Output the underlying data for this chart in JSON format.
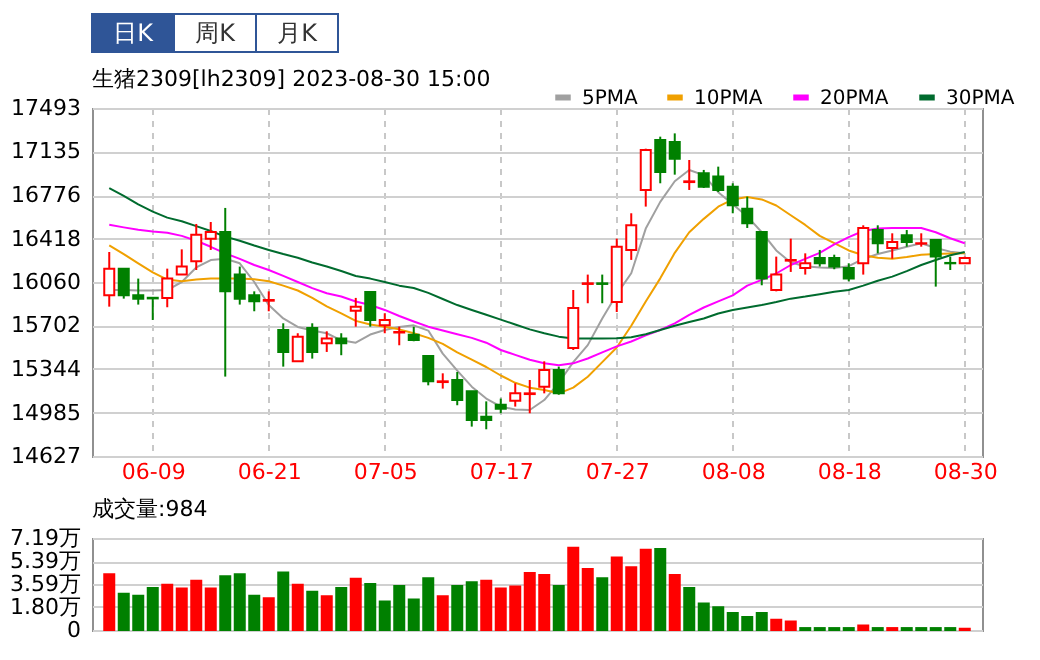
{
  "chart_data": [
    {
      "type": "candlestick",
      "title": "生猪2309[lh2309] 2023-08-30 15:00",
      "annotations": [
        "日K",
        "周K",
        "月K"
      ],
      "categories": [
        null,
        null,
        null,
        "06-09",
        null,
        null,
        null,
        null,
        null,
        null,
        null,
        "06-21",
        null,
        null,
        null,
        null,
        null,
        null,
        null,
        "07-05",
        null,
        null,
        null,
        null,
        null,
        null,
        null,
        "07-17",
        null,
        null,
        null,
        null,
        null,
        null,
        null,
        "07-27",
        null,
        null,
        null,
        null,
        null,
        null,
        null,
        "08-08",
        null,
        null,
        null,
        null,
        null,
        null,
        null,
        "08-18",
        null,
        null,
        null,
        null,
        null,
        null,
        null,
        "08-30"
      ],
      "ohlc": [
        [
          15950,
          16307,
          15857,
          16170
        ],
        [
          16170,
          16170,
          15923,
          15950
        ],
        [
          15950,
          16088,
          15874,
          15923
        ],
        [
          15930,
          15935,
          15747,
          15925
        ],
        [
          15928,
          16170,
          15852,
          16088
        ],
        [
          16121,
          16329,
          16121,
          16187
        ],
        [
          16230,
          16538,
          16159,
          16450
        ],
        [
          16417,
          16554,
          16324,
          16472
        ],
        [
          16472,
          16670,
          15281,
          15983
        ],
        [
          16121,
          16187,
          15874,
          15923
        ],
        [
          15950,
          15983,
          15819,
          15901
        ],
        [
          15906,
          15983,
          15819,
          15912
        ],
        [
          15665,
          15720,
          15363,
          15484
        ],
        [
          15407,
          15638,
          15407,
          15610
        ],
        [
          15681,
          15720,
          15429,
          15484
        ],
        [
          15555,
          15654,
          15484,
          15594
        ],
        [
          15594,
          15638,
          15457,
          15555
        ],
        [
          15824,
          15929,
          15692,
          15857
        ],
        [
          15978,
          15978,
          15692,
          15747
        ],
        [
          15703,
          15802,
          15638,
          15747
        ],
        [
          15644,
          15692,
          15539,
          15648
        ],
        [
          15626,
          15692,
          15572,
          15583
        ],
        [
          15451,
          15451,
          15209,
          15242
        ],
        [
          15236,
          15308,
          15182,
          15242
        ],
        [
          15253,
          15319,
          15045,
          15088
        ],
        [
          15160,
          15160,
          14869,
          14924
        ],
        [
          14951,
          15077,
          14847,
          14924
        ],
        [
          15050,
          15100,
          14979,
          15017
        ],
        [
          15083,
          15226,
          15034,
          15143
        ],
        [
          15137,
          15253,
          14979,
          15143
        ],
        [
          15198,
          15407,
          15143,
          15336
        ],
        [
          15336,
          15363,
          15132,
          15143
        ],
        [
          15517,
          15994,
          15500,
          15846
        ],
        [
          16044,
          16121,
          15885,
          16049
        ],
        [
          16049,
          16121,
          15885,
          16044
        ],
        [
          15896,
          16417,
          15813,
          16351
        ],
        [
          16324,
          16626,
          16242,
          16527
        ],
        [
          16818,
          17158,
          16681,
          17147
        ],
        [
          17230,
          17257,
          16873,
          16966
        ],
        [
          17213,
          17284,
          16944,
          17076
        ],
        [
          16883,
          17065,
          16818,
          16889
        ],
        [
          16955,
          16983,
          16834,
          16845
        ],
        [
          16928,
          17010,
          16801,
          16818
        ],
        [
          16845,
          16873,
          16626,
          16692
        ],
        [
          16664,
          16763,
          16505,
          16543
        ],
        [
          16472,
          16472,
          16033,
          16088
        ],
        [
          15994,
          16269,
          15983,
          16121
        ],
        [
          16236,
          16417,
          16143,
          16241
        ],
        [
          16176,
          16296,
          16121,
          16214
        ],
        [
          16258,
          16324,
          16187,
          16214
        ],
        [
          16258,
          16285,
          16165,
          16187
        ],
        [
          16176,
          16214,
          16066,
          16088
        ],
        [
          16214,
          16527,
          16121,
          16505
        ],
        [
          16488,
          16527,
          16296,
          16379
        ],
        [
          16340,
          16461,
          16252,
          16390
        ],
        [
          16445,
          16488,
          16351,
          16390
        ],
        [
          16376,
          16461,
          16351,
          16379
        ],
        [
          16406,
          16406,
          16022,
          16269
        ],
        [
          16217,
          16269,
          16159,
          16214
        ],
        [
          16214,
          16269,
          16214,
          16258
        ]
      ],
      "colors": [
        "#ff0000",
        "#008000",
        "#008000",
        "#008000",
        "#ff0000",
        "#ff0000",
        "#ff0000",
        "#ff0000",
        "#008000",
        "#008000",
        "#008000",
        "#ff0000",
        "#008000",
        "#ff0000",
        "#008000",
        "#ff0000",
        "#008000",
        "#ff0000",
        "#008000",
        "#ff0000",
        "#ff0000",
        "#008000",
        "#008000",
        "#ff0000",
        "#008000",
        "#008000",
        "#008000",
        "#008000",
        "#ff0000",
        "#ff0000",
        "#ff0000",
        "#008000",
        "#ff0000",
        "#ff0000",
        "#008000",
        "#ff0000",
        "#ff0000",
        "#ff0000",
        "#008000",
        "#008000",
        "#ff0000",
        "#008000",
        "#008000",
        "#008000",
        "#008000",
        "#008000",
        "#ff0000",
        "#ff0000",
        "#ff0000",
        "#008000",
        "#008000",
        "#008000",
        "#ff0000",
        "#008000",
        "#ff0000",
        "#008000",
        "#ff0000",
        "#008000",
        "#008000",
        "#ff0000"
      ],
      "series": [
        {
          "name": "5PMA",
          "type": "line",
          "color": "#a0a0a0",
          "values": [
            15994,
            15994,
            15990,
            15990,
            15994,
            16060,
            16180,
            16241,
            16252,
            16214,
            16060,
            15870,
            15760,
            15690,
            15660,
            15638,
            15580,
            15560,
            15627,
            15665,
            15690,
            15703,
            15660,
            15470,
            15330,
            15198,
            15100,
            15033,
            15010,
            15006,
            15088,
            15230,
            15400,
            15540,
            15760,
            15960,
            16132,
            16500,
            16720,
            16890,
            16982,
            16940,
            16800,
            16700,
            16600,
            16470,
            16320,
            16220,
            16190,
            16180,
            16176,
            16190,
            16250,
            16290,
            16320,
            16350,
            16379,
            16340,
            16310,
            16296
          ]
        },
        {
          "name": "10PMA",
          "type": "line",
          "color": "#f0a000",
          "values": [
            16362,
            16290,
            16214,
            16140,
            16080,
            16066,
            16080,
            16088,
            16088,
            16088,
            16082,
            16066,
            16030,
            15990,
            15930,
            15860,
            15802,
            15740,
            15710,
            15692,
            15670,
            15638,
            15600,
            15550,
            15480,
            15420,
            15360,
            15290,
            15230,
            15190,
            15171,
            15143,
            15190,
            15280,
            15400,
            15520,
            15700,
            15900,
            16090,
            16300,
            16470,
            16580,
            16680,
            16740,
            16760,
            16740,
            16690,
            16610,
            16530,
            16440,
            16380,
            16320,
            16280,
            16260,
            16252,
            16265,
            16285,
            16290,
            16295,
            16296
          ]
        },
        {
          "name": "20PMA",
          "type": "line",
          "color": "#ff00ff",
          "values": [
            16532,
            16510,
            16490,
            16475,
            16465,
            16440,
            16400,
            16350,
            16296,
            16250,
            16200,
            16159,
            16110,
            16060,
            16010,
            15967,
            15940,
            15900,
            15870,
            15830,
            15780,
            15735,
            15692,
            15660,
            15630,
            15600,
            15560,
            15500,
            15460,
            15420,
            15391,
            15374,
            15390,
            15430,
            15480,
            15530,
            15570,
            15620,
            15665,
            15720,
            15790,
            15850,
            15900,
            15950,
            16030,
            16077,
            16130,
            16200,
            16250,
            16300,
            16370,
            16430,
            16480,
            16500,
            16505,
            16505,
            16505,
            16470,
            16420,
            16379
          ]
        },
        {
          "name": "30PMA",
          "type": "line",
          "color": "#006b2e",
          "values": [
            16834,
            16770,
            16700,
            16640,
            16590,
            16560,
            16520,
            16480,
            16434,
            16400,
            16360,
            16324,
            16290,
            16260,
            16220,
            16187,
            16150,
            16110,
            16088,
            16060,
            16030,
            16011,
            15970,
            15920,
            15870,
            15830,
            15790,
            15750,
            15710,
            15670,
            15638,
            15610,
            15594,
            15594,
            15594,
            15596,
            15605,
            15630,
            15665,
            15700,
            15730,
            15760,
            15800,
            15830,
            15850,
            15870,
            15895,
            15923,
            15940,
            15960,
            15980,
            15994,
            16030,
            16070,
            16104,
            16150,
            16200,
            16241,
            16280,
            16307
          ]
        }
      ],
      "ylim": [
        14627,
        17493
      ],
      "yticks": [
        14627,
        14985,
        15344,
        15702,
        16060,
        16418,
        16776,
        17135,
        17493
      ],
      "grid": true,
      "legend": "top right"
    },
    {
      "type": "bar",
      "title": "成交量:984",
      "categories": [
        null,
        null,
        null,
        null,
        null,
        null,
        null,
        null,
        null,
        null,
        null,
        null,
        null,
        null,
        null,
        null,
        null,
        null,
        null,
        null,
        null,
        null,
        null,
        null,
        null,
        null,
        null,
        null,
        null,
        null,
        null,
        null,
        null,
        null,
        null,
        null,
        null,
        null,
        null,
        null,
        null,
        null,
        null,
        null,
        null,
        null,
        null,
        null,
        null,
        null,
        null,
        null,
        null,
        null,
        null,
        null,
        null,
        null,
        null,
        null
      ],
      "values": [
        4.35,
        2.83,
        2.68,
        3.29,
        3.54,
        3.24,
        3.85,
        3.24,
        4.2,
        4.35,
        2.68,
        2.48,
        4.5,
        3.54,
        2.99,
        2.63,
        3.29,
        4.0,
        3.59,
        2.23,
        3.44,
        2.38,
        4.05,
        2.63,
        3.44,
        3.74,
        3.85,
        3.24,
        3.39,
        4.45,
        4.3,
        3.44,
        6.43,
        4.76,
        4.05,
        5.67,
        4.91,
        6.27,
        6.33,
        4.3,
        3.29,
        2.07,
        1.77,
        1.32,
        1.01,
        1.32,
        0.81,
        0.66,
        0.15,
        0.15,
        0.15,
        0.15,
        0.35,
        0.15,
        0.15,
        0.15,
        0.15,
        0.15,
        0.15,
        0.0984
      ],
      "colors": [
        "#ff0000",
        "#008000",
        "#008000",
        "#008000",
        "#ff0000",
        "#ff0000",
        "#ff0000",
        "#ff0000",
        "#008000",
        "#008000",
        "#008000",
        "#ff0000",
        "#008000",
        "#ff0000",
        "#008000",
        "#ff0000",
        "#008000",
        "#ff0000",
        "#008000",
        "#008000",
        "#008000",
        "#008000",
        "#008000",
        "#ff0000",
        "#008000",
        "#008000",
        "#ff0000",
        "#ff0000",
        "#ff0000",
        "#ff0000",
        "#ff0000",
        "#008000",
        "#ff0000",
        "#ff0000",
        "#008000",
        "#ff0000",
        "#ff0000",
        "#ff0000",
        "#008000",
        "#ff0000",
        "#008000",
        "#008000",
        "#008000",
        "#008000",
        "#008000",
        "#008000",
        "#ff0000",
        "#ff0000",
        "#008000",
        "#008000",
        "#008000",
        "#008000",
        "#ff0000",
        "#008000",
        "#ff0000",
        "#008000",
        "#008000",
        "#008000",
        "#008000",
        "#ff0000"
      ],
      "ylim": [
        0,
        7.19
      ],
      "yticks": [
        0,
        {
          "value": 1.8,
          "label": "1.80万"
        },
        {
          "value": 3.59,
          "label": "3.59万"
        },
        {
          "value": 5.39,
          "label": "5.39万"
        },
        {
          "value": 7.19,
          "label": "7.19万"
        }
      ],
      "grid": "y",
      "tick_labels": "y"
    }
  ]
}
